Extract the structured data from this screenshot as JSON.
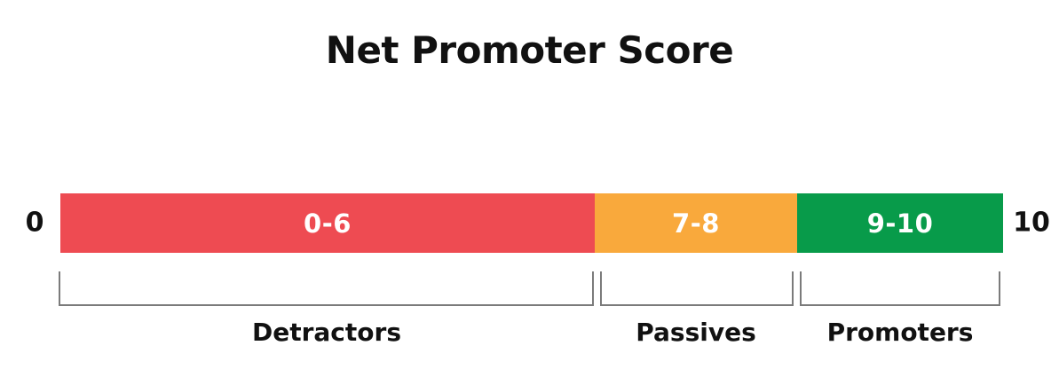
{
  "title": "Net Promoter Score",
  "scale": {
    "min_label": "0",
    "max_label": "10"
  },
  "bar": {
    "segments": [
      {
        "name": "detractors",
        "range_label": "0-6",
        "group_label": "Detractors",
        "color": "#EE4B52"
      },
      {
        "name": "passives",
        "range_label": "7-8",
        "group_label": "Passives",
        "color": "#F9A93C"
      },
      {
        "name": "promoters",
        "range_label": "9-10",
        "group_label": "Promoters",
        "color": "#089B4A"
      }
    ],
    "range_text_color": "#FFFFFF",
    "bracket_color": "#7B7B7B"
  },
  "chart_data": {
    "type": "bar",
    "title": "Net Promoter Score",
    "axis_range": [
      0,
      10
    ],
    "segments": [
      {
        "label": "Detractors",
        "range": "0-6",
        "start": 0,
        "end": 6,
        "color": "#EE4B52"
      },
      {
        "label": "Passives",
        "range": "7-8",
        "start": 7,
        "end": 8,
        "color": "#F9A93C"
      },
      {
        "label": "Promoters",
        "range": "9-10",
        "start": 9,
        "end": 10,
        "color": "#089B4A"
      }
    ]
  }
}
